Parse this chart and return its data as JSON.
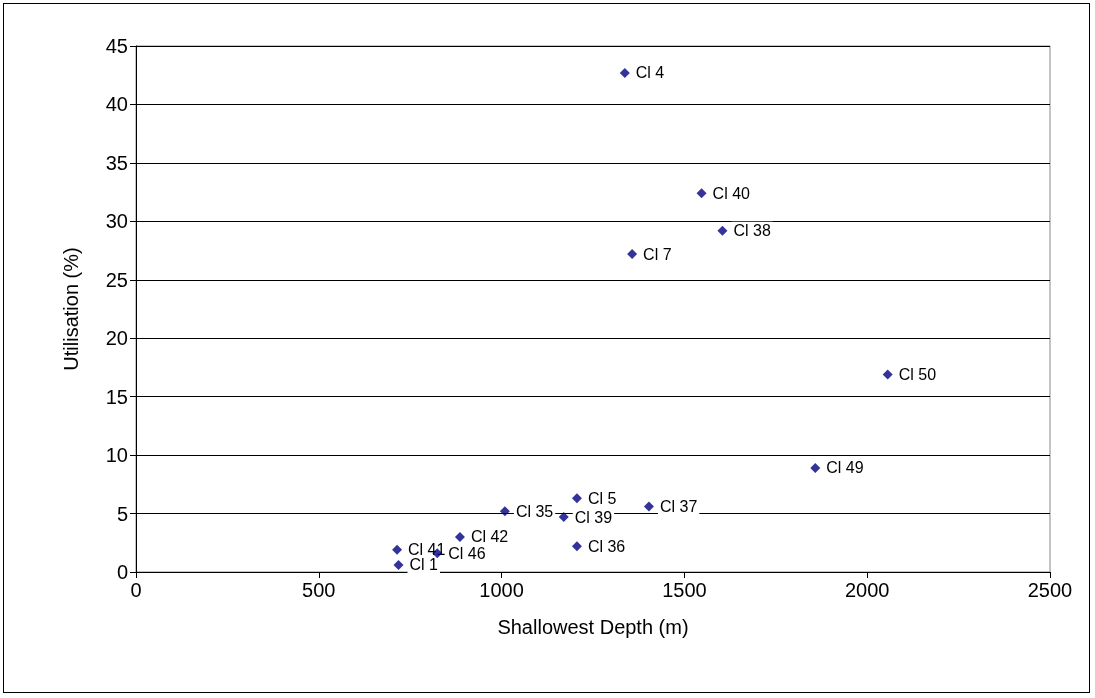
{
  "chart_data": {
    "type": "scatter",
    "xlabel": "Shallowest Depth (m)",
    "ylabel": "Utilisation (%)",
    "x": [
      714,
      718,
      824,
      886,
      1009,
      1170,
      1206,
      1206,
      1403,
      1337,
      1547,
      1604,
      1357,
      2056,
      1858
    ],
    "values": [
      1.9,
      0.6,
      1.6,
      3.0,
      5.2,
      4.7,
      6.3,
      2.2,
      5.6,
      42.7,
      32.4,
      29.2,
      27.2,
      16.9,
      8.9
    ],
    "color": "#000080",
    "marker": "diamond",
    "grid": "y",
    "xlim": [
      0,
      2500
    ],
    "xticks": [
      0,
      500,
      1000,
      1500,
      2000,
      2500
    ],
    "ylim": [
      0,
      45
    ],
    "yticks": [
      0,
      5,
      10,
      15,
      20,
      25,
      30,
      35,
      40,
      45
    ],
    "annotations": [
      {
        "text": "Cl 41",
        "x": 714,
        "y": 1.9
      },
      {
        "text": "Cl 1",
        "x": 718,
        "y": 0.6
      },
      {
        "text": "Cl 46",
        "x": 824,
        "y": 1.6
      },
      {
        "text": "Cl 42",
        "x": 886,
        "y": 3.0
      },
      {
        "text": "Cl 35",
        "x": 1009,
        "y": 5.2
      },
      {
        "text": "Cl 39",
        "x": 1170,
        "y": 4.7
      },
      {
        "text": "Cl 5",
        "x": 1206,
        "y": 6.3
      },
      {
        "text": "Cl 36",
        "x": 1206,
        "y": 2.2
      },
      {
        "text": "Cl 37",
        "x": 1403,
        "y": 5.6
      },
      {
        "text": "Cl 4",
        "x": 1337,
        "y": 42.7
      },
      {
        "text": "Cl 40",
        "x": 1547,
        "y": 32.4
      },
      {
        "text": "Cl 38",
        "x": 1604,
        "y": 29.2
      },
      {
        "text": "Cl 7",
        "x": 1357,
        "y": 27.2
      },
      {
        "text": "Cl 50",
        "x": 2056,
        "y": 16.9
      },
      {
        "text": "Cl 49",
        "x": 1858,
        "y": 8.9
      }
    ]
  }
}
